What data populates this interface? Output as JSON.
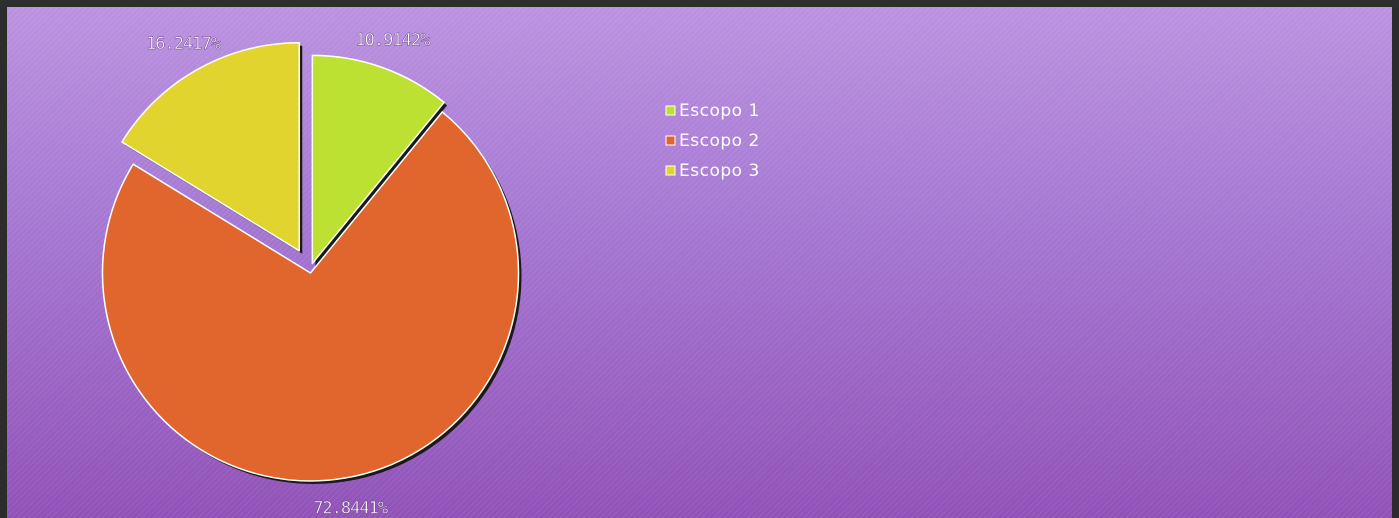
{
  "chart_data": {
    "type": "pie",
    "title": "",
    "exploded": true,
    "legend_position": "top-center",
    "slices": [
      {
        "name": "Escopo 1",
        "value": 10.9142,
        "label": "10.9142%",
        "color": "#bde132"
      },
      {
        "name": "Escopo 2",
        "value": 72.8441,
        "label": "72.8441%",
        "color": "#e0662d"
      },
      {
        "name": "Escopo 3",
        "value": 16.2417,
        "label": "16.2417%",
        "color": "#e2d42e"
      }
    ]
  }
}
